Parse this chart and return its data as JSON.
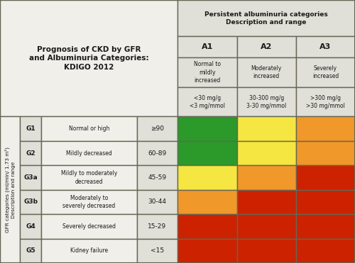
{
  "title_left": "Prognosis of CKD by GFR\nand Albuminuria Categories:\nKDIGO 2012",
  "col_header_main": "Persistent albuminuria categories\nDescription and range",
  "col_labels": [
    "A1",
    "A2",
    "A3"
  ],
  "col_desc": [
    "Normal to\nmildly\nincreased",
    "Moderately\nincreased",
    "Severely\nincreased"
  ],
  "col_range": [
    "<30 mg/g\n<3 mg/mmol",
    "30-300 mg/g\n3-30 mg/mmol",
    ">300 mg/g\n>30 mg/mmol"
  ],
  "row_ylabel": "GFR categories (ml/min/ 1.73 m²)\nDescription and range",
  "row_labels": [
    "G1",
    "G2",
    "G3a",
    "G3b",
    "G4",
    "G5"
  ],
  "row_desc": [
    "Normal or high",
    "Mildly decreased",
    "Mildly to moderately\ndecreased",
    "Moderately to\nseverely decreased",
    "Severely decreased",
    "Kidney failure"
  ],
  "row_range": [
    "≥90",
    "60-89",
    "45-59",
    "30-44",
    "15-29",
    "<15"
  ],
  "cell_colors": [
    [
      "#2b9a2b",
      "#f5e642",
      "#f0982a"
    ],
    [
      "#2b9a2b",
      "#f5e642",
      "#f0982a"
    ],
    [
      "#f5e642",
      "#f0982a",
      "#cc2200"
    ],
    [
      "#f0982a",
      "#cc2200",
      "#cc2200"
    ],
    [
      "#cc2200",
      "#cc2200",
      "#cc2200"
    ],
    [
      "#cc2200",
      "#cc2200",
      "#cc2200"
    ]
  ],
  "bg_color": "#f0efea",
  "header_bg": "#e0dfd8",
  "border_color": "#666655",
  "text_color": "#1a1a1a",
  "fig_w": 5.0,
  "fig_h": 3.71,
  "dpi": 100
}
